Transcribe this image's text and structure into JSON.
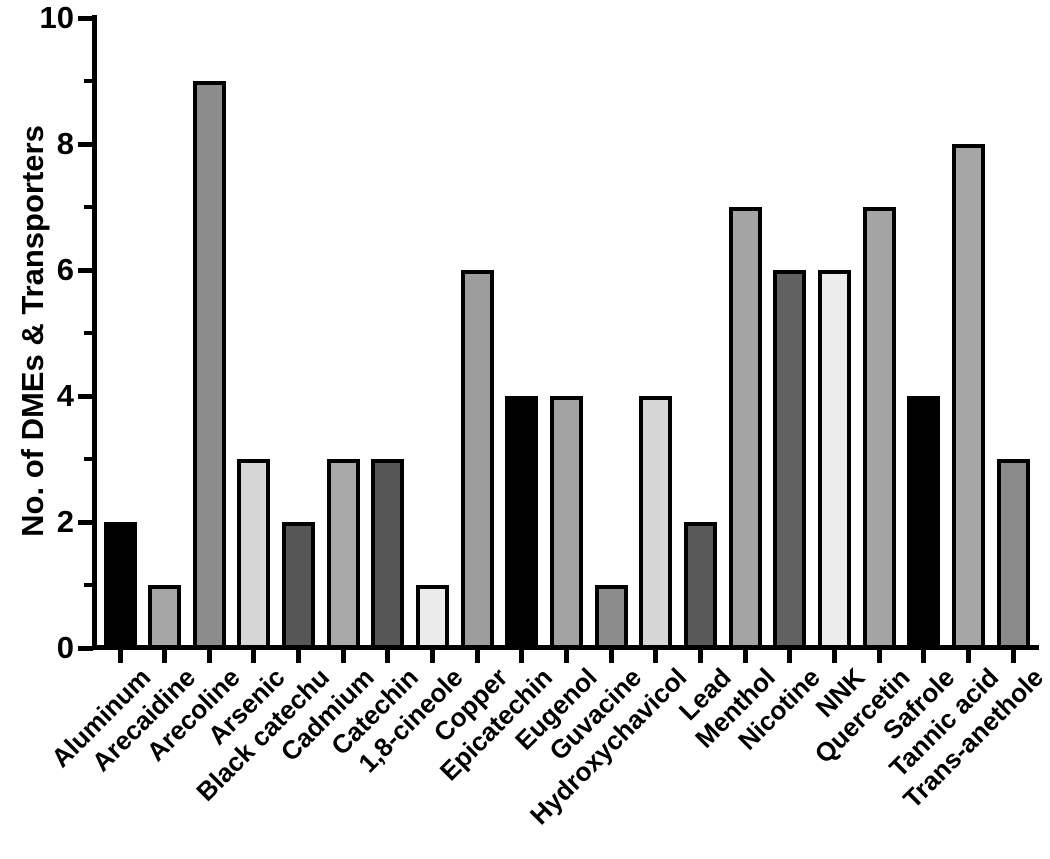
{
  "chart_data": {
    "type": "bar",
    "title": "",
    "xlabel": "",
    "ylabel": "No. of DMEs & Transporters",
    "ylim": [
      0,
      10
    ],
    "y_major_ticks": [
      0,
      2,
      4,
      6,
      8,
      10
    ],
    "y_minor_ticks": [
      1,
      3,
      5,
      7,
      9
    ],
    "grid": false,
    "legend": false,
    "categories": [
      "Aluminum",
      "Arecaidine",
      "Arecoline",
      "Arsenic",
      "Black catechu",
      "Cadmium",
      "Catechin",
      "1,8-cineole",
      "Copper",
      "Epicatechin",
      "Eugenol",
      "Guvacine",
      "Hydroxychavicol",
      "Lead",
      "Menthol",
      "Nicotine",
      "NNK",
      "Quercetin",
      "Safrole",
      "Tannic acid",
      "Trans-anethole"
    ],
    "values": [
      2,
      1,
      9,
      3,
      2,
      3,
      3,
      1,
      6,
      4,
      4,
      1,
      4,
      2,
      7,
      6,
      6,
      7,
      4,
      8,
      3
    ],
    "bar_fill_colors": [
      "#000000",
      "#a6a6a6",
      "#8c8c8c",
      "#d6d6d6",
      "#565656",
      "#a8a8a8",
      "#565656",
      "#ebebeb",
      "#9c9c9c",
      "#000000",
      "#a2a2a2",
      "#8c8c8c",
      "#d6d6d6",
      "#595959",
      "#a4a4a4",
      "#616161",
      "#ececec",
      "#a4a4a4",
      "#000000",
      "#a6a6a6",
      "#8a8a8a"
    ],
    "bar_outline_color": "#000000",
    "axis_color": "#000000",
    "background_color": "#ffffff"
  }
}
